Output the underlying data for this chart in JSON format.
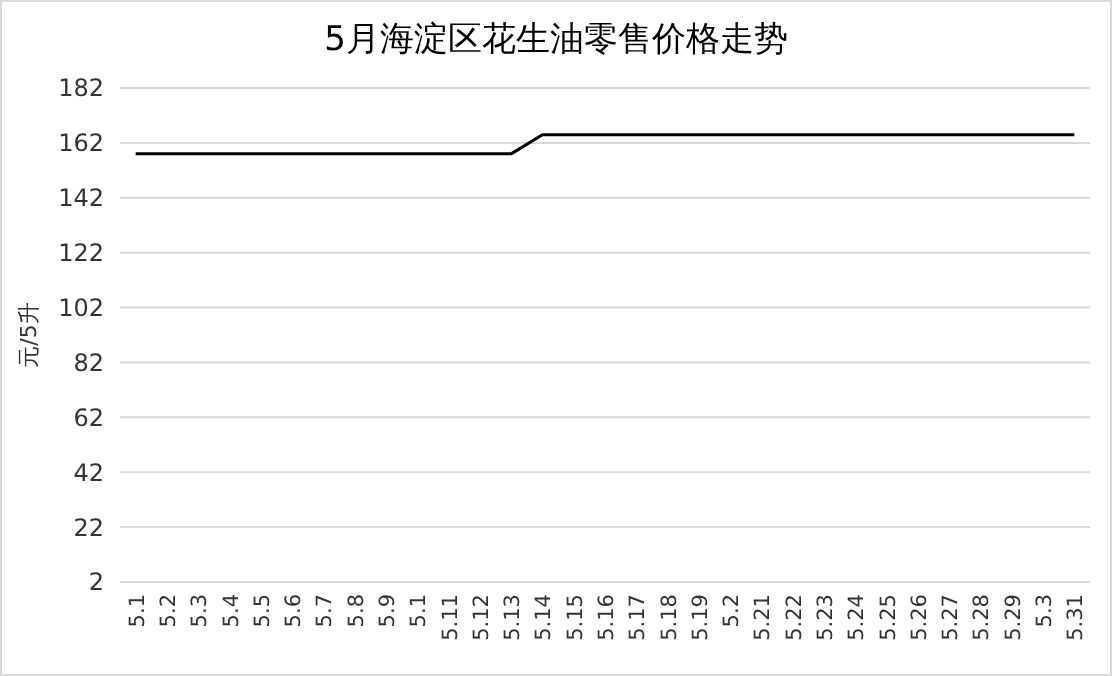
{
  "chart_data": {
    "type": "line",
    "title": "5月海淀区花生油零售价格走势",
    "ylabel": "元/5升",
    "categories": [
      "5.1",
      "5.2",
      "5.3",
      "5.4",
      "5.5",
      "5.6",
      "5.7",
      "5.8",
      "5.9",
      "5.1",
      "5.11",
      "5.12",
      "5.13",
      "5.14",
      "5.15",
      "5.16",
      "5.17",
      "5.18",
      "5.19",
      "5.2",
      "5.21",
      "5.22",
      "5.23",
      "5.24",
      "5.25",
      "5.26",
      "5.27",
      "5.28",
      "5.29",
      "5.3",
      "5.31"
    ],
    "series": [
      {
        "color": "#000000",
        "values": [
          158,
          158,
          158,
          158,
          158,
          158,
          158,
          158,
          158,
          158,
          158,
          158,
          158,
          165,
          165,
          165,
          165,
          165,
          165,
          165,
          165,
          165,
          165,
          165,
          165,
          165,
          165,
          165,
          165,
          165,
          165
        ]
      }
    ],
    "ylim": [
      2,
      182
    ],
    "yticks": [
      2,
      22,
      42,
      62,
      82,
      102,
      122,
      142,
      162,
      182
    ],
    "grid": "y"
  }
}
